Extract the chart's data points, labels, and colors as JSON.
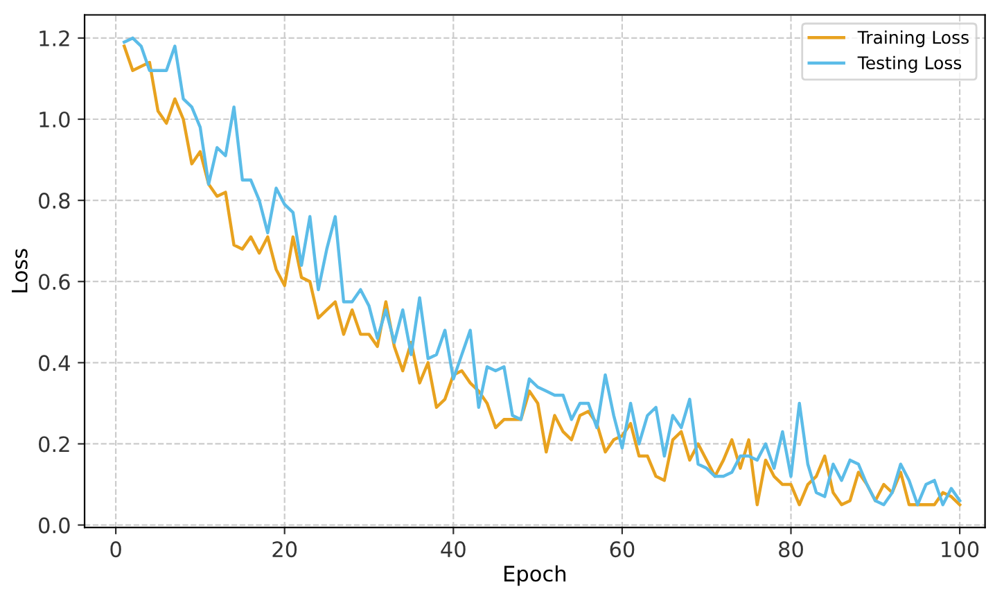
{
  "chart_data": {
    "type": "line",
    "xlabel": "Epoch",
    "ylabel": "Loss",
    "x": [
      1,
      2,
      3,
      4,
      5,
      6,
      7,
      8,
      9,
      10,
      11,
      12,
      13,
      14,
      15,
      16,
      17,
      18,
      19,
      20,
      21,
      22,
      23,
      24,
      25,
      26,
      27,
      28,
      29,
      30,
      31,
      32,
      33,
      34,
      35,
      36,
      37,
      38,
      39,
      40,
      41,
      42,
      43,
      44,
      45,
      46,
      47,
      48,
      49,
      50,
      51,
      52,
      53,
      54,
      55,
      56,
      57,
      58,
      59,
      60,
      61,
      62,
      63,
      64,
      65,
      66,
      67,
      68,
      69,
      70,
      71,
      72,
      73,
      74,
      75,
      76,
      77,
      78,
      79,
      80,
      81,
      82,
      83,
      84,
      85,
      86,
      87,
      88,
      89,
      90,
      91,
      92,
      93,
      94,
      95,
      96,
      97,
      98,
      99,
      100
    ],
    "series": [
      {
        "name": "Training Loss",
        "color": "#e8a21f",
        "values": [
          1.18,
          1.12,
          1.13,
          1.14,
          1.02,
          0.99,
          1.05,
          1.0,
          0.89,
          0.92,
          0.84,
          0.81,
          0.82,
          0.69,
          0.68,
          0.71,
          0.67,
          0.71,
          0.63,
          0.59,
          0.71,
          0.61,
          0.6,
          0.51,
          0.53,
          0.55,
          0.47,
          0.53,
          0.47,
          0.47,
          0.44,
          0.55,
          0.44,
          0.38,
          0.45,
          0.35,
          0.4,
          0.29,
          0.31,
          0.37,
          0.38,
          0.35,
          0.33,
          0.3,
          0.24,
          0.26,
          0.26,
          0.26,
          0.33,
          0.3,
          0.18,
          0.27,
          0.23,
          0.21,
          0.27,
          0.28,
          0.25,
          0.18,
          0.21,
          0.22,
          0.25,
          0.17,
          0.17,
          0.12,
          0.11,
          0.21,
          0.23,
          0.16,
          0.2,
          0.16,
          0.12,
          0.16,
          0.21,
          0.14,
          0.21,
          0.05,
          0.16,
          0.12,
          0.1,
          0.1,
          0.05,
          0.1,
          0.12,
          0.17,
          0.08,
          0.05,
          0.06,
          0.13,
          0.1,
          0.06,
          0.1,
          0.08,
          0.13,
          0.05,
          0.05,
          0.05,
          0.05,
          0.08,
          0.07,
          0.05
        ]
      },
      {
        "name": "Testing Loss",
        "color": "#5bbce8",
        "values": [
          1.19,
          1.2,
          1.18,
          1.12,
          1.12,
          1.12,
          1.18,
          1.05,
          1.03,
          0.98,
          0.84,
          0.93,
          0.91,
          1.03,
          0.85,
          0.85,
          0.8,
          0.72,
          0.83,
          0.79,
          0.77,
          0.64,
          0.76,
          0.58,
          0.68,
          0.76,
          0.55,
          0.55,
          0.58,
          0.54,
          0.46,
          0.53,
          0.45,
          0.53,
          0.42,
          0.56,
          0.41,
          0.42,
          0.48,
          0.36,
          0.42,
          0.48,
          0.29,
          0.39,
          0.38,
          0.39,
          0.27,
          0.26,
          0.36,
          0.34,
          0.33,
          0.32,
          0.32,
          0.26,
          0.3,
          0.3,
          0.24,
          0.37,
          0.27,
          0.19,
          0.3,
          0.2,
          0.27,
          0.29,
          0.17,
          0.27,
          0.24,
          0.31,
          0.15,
          0.14,
          0.12,
          0.12,
          0.13,
          0.17,
          0.17,
          0.16,
          0.2,
          0.14,
          0.23,
          0.12,
          0.3,
          0.15,
          0.08,
          0.07,
          0.15,
          0.11,
          0.16,
          0.15,
          0.1,
          0.06,
          0.05,
          0.08,
          0.15,
          0.11,
          0.05,
          0.1,
          0.11,
          0.05,
          0.09,
          0.06
        ]
      }
    ],
    "xlim": [
      -3.7,
      103
    ],
    "xticks": [
      0,
      20,
      40,
      60,
      80,
      100
    ],
    "ylim": [
      -0.006,
      1.257
    ],
    "yticks": [
      {
        "value": 0,
        "label": "0.0"
      },
      0.2,
      0.4,
      0.6,
      0.8,
      {
        "value": 1,
        "label": "1.0"
      },
      1.2
    ],
    "grid": true,
    "legend": "top right",
    "line_style": "solid",
    "marker": "none"
  }
}
